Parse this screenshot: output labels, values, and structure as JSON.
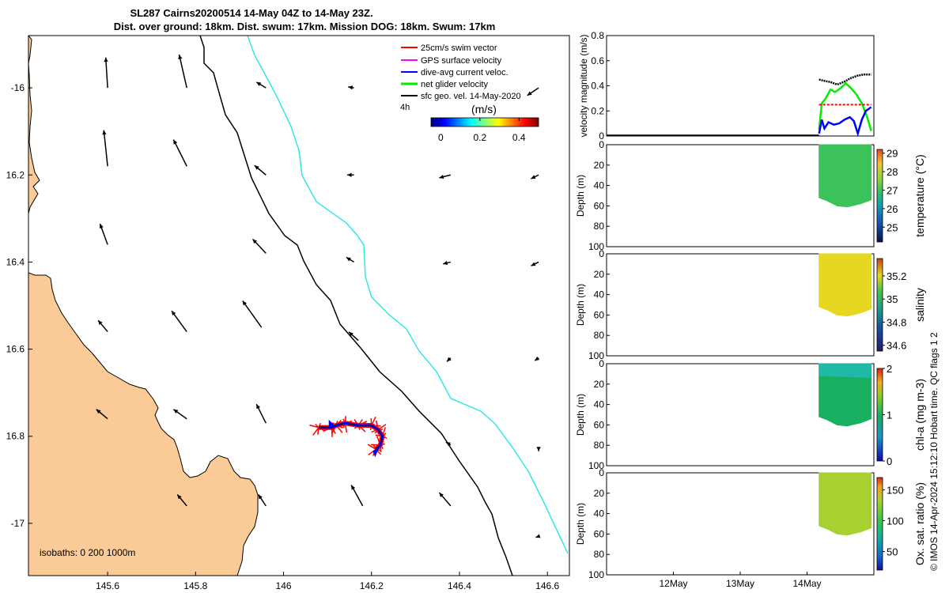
{
  "title_line1": "SL287 Cairns20200514 14-May 04Z to 14-May 23Z.",
  "title_line2": "Dist. over ground: 18km. Dist. swum: 17km. Mission DOG: 18km. Swum: 17km",
  "footer": "© IMOS 14-Apr-2024 15:12:10 Hobart time. QC flags 1  2",
  "colors": {
    "land": "#fbcb97",
    "isobath_200": "#000000",
    "isobath_1000": "#33e6e6",
    "swim_vector": "#ff0000",
    "gps_velocity": "#ff00ff",
    "dive_avg": "#0000ff",
    "net_velocity": "#00ee00",
    "geo_velocity": "#000000"
  },
  "chart_data": [
    {
      "type": "map",
      "x_ticks": [
        "145.6",
        "145.8",
        "146",
        "146.2",
        "146.4",
        "146.6"
      ],
      "y_ticks": [
        "-16",
        "16.2",
        "16.4",
        "16.6",
        "16.8",
        "-17"
      ],
      "xlim": [
        145.42,
        146.65
      ],
      "ylim": [
        -17.12,
        -15.88
      ],
      "legend": [
        {
          "label": "25cm/s swim vector",
          "color": "#ff0000"
        },
        {
          "label": "GPS surface velocity",
          "color": "#ff00ff"
        },
        {
          "label": "dive-avg current veloc.",
          "color": "#0000ff"
        },
        {
          "label": "net glider velocity",
          "color": "#00ee00"
        },
        {
          "label": "sfc geo. vel. 14-May-2020",
          "color": "#000000"
        }
      ],
      "legend_note": "4h",
      "colorbar": {
        "label": "(m/s)",
        "ticks": [
          "0",
          "0.2",
          "0.4"
        ],
        "range": [
          -0.05,
          0.5
        ]
      },
      "isobath_note": "isobaths: 0   200  1000m",
      "geo_vectors": [
        {
          "lon": 145.6,
          "lat": -16.0,
          "u": -0.02,
          "v": 0.32
        },
        {
          "lon": 145.78,
          "lat": -16.0,
          "u": -0.08,
          "v": 0.35
        },
        {
          "lon": 145.6,
          "lat": -16.18,
          "u": -0.04,
          "v": 0.38
        },
        {
          "lon": 145.78,
          "lat": -16.18,
          "u": -0.14,
          "v": 0.28
        },
        {
          "lon": 145.6,
          "lat": -16.36,
          "u": -0.08,
          "v": 0.22
        },
        {
          "lon": 145.6,
          "lat": -16.56,
          "u": -0.1,
          "v": 0.12
        },
        {
          "lon": 145.78,
          "lat": -16.56,
          "u": -0.16,
          "v": 0.22
        },
        {
          "lon": 145.6,
          "lat": -16.76,
          "u": -0.12,
          "v": 0.1
        },
        {
          "lon": 145.78,
          "lat": -16.76,
          "u": -0.14,
          "v": 0.1
        },
        {
          "lon": 145.78,
          "lat": -16.96,
          "u": -0.1,
          "v": 0.12
        },
        {
          "lon": 145.95,
          "lat": -16.55,
          "u": -0.2,
          "v": 0.28
        },
        {
          "lon": 145.96,
          "lat": -16.77,
          "u": -0.1,
          "v": 0.2
        },
        {
          "lon": 145.96,
          "lat": -16.96,
          "u": -0.08,
          "v": 0.12
        },
        {
          "lon": 145.96,
          "lat": -16.2,
          "u": -0.12,
          "v": 0.1
        },
        {
          "lon": 145.96,
          "lat": -16.38,
          "u": -0.14,
          "v": 0.15
        },
        {
          "lon": 145.96,
          "lat": -16.0,
          "u": -0.1,
          "v": 0.06
        },
        {
          "lon": 146.16,
          "lat": -16.0,
          "u": -0.06,
          "v": 0.01
        },
        {
          "lon": 146.16,
          "lat": -16.2,
          "u": -0.07,
          "v": 0.0
        },
        {
          "lon": 146.16,
          "lat": -16.4,
          "u": -0.08,
          "v": 0.05
        },
        {
          "lon": 146.17,
          "lat": -16.58,
          "u": -0.1,
          "v": 0.09
        },
        {
          "lon": 146.18,
          "lat": -16.96,
          "u": -0.12,
          "v": 0.22
        },
        {
          "lon": 146.38,
          "lat": -16.2,
          "u": -0.12,
          "v": -0.03
        },
        {
          "lon": 146.38,
          "lat": -16.4,
          "u": -0.08,
          "v": -0.02
        },
        {
          "lon": 146.38,
          "lat": -16.62,
          "u": -0.04,
          "v": -0.04
        },
        {
          "lon": 146.38,
          "lat": -16.82,
          "u": -0.05,
          "v": 0.03
        },
        {
          "lon": 146.38,
          "lat": -16.96,
          "u": -0.12,
          "v": 0.14
        },
        {
          "lon": 146.58,
          "lat": -16.0,
          "u": -0.12,
          "v": -0.08
        },
        {
          "lon": 146.58,
          "lat": -16.2,
          "u": -0.08,
          "v": -0.04
        },
        {
          "lon": 146.58,
          "lat": -16.4,
          "u": -0.08,
          "v": -0.04
        },
        {
          "lon": 146.58,
          "lat": -16.62,
          "u": -0.04,
          "v": -0.03
        },
        {
          "lon": 146.58,
          "lat": -16.83,
          "u": 0.0,
          "v": -0.02
        },
        {
          "lon": 146.58,
          "lat": -17.03,
          "u": -0.03,
          "v": -0.01
        }
      ],
      "glider_track": [
        [
          146.08,
          -16.78
        ],
        [
          146.11,
          -16.78
        ],
        [
          146.12,
          -16.775
        ],
        [
          146.14,
          -16.77
        ],
        [
          146.17,
          -16.775
        ],
        [
          146.2,
          -16.775
        ],
        [
          146.215,
          -16.785
        ],
        [
          146.225,
          -16.8
        ],
        [
          146.22,
          -16.82
        ],
        [
          146.21,
          -16.83
        ]
      ]
    },
    {
      "type": "line",
      "ylabel": "velocity magnitude (m/s)",
      "ylim": [
        0,
        0.8
      ],
      "y_ticks": [
        "0",
        "0.2",
        "0.4",
        "0.6",
        "0.8"
      ],
      "series": [
        {
          "name": "sfc geo. vel.",
          "color": "#000000",
          "x": [
            14.18,
            14.25,
            14.35,
            14.45,
            14.55,
            14.65,
            14.75,
            14.85,
            14.96
          ],
          "y": [
            0.45,
            0.44,
            0.43,
            0.41,
            0.43,
            0.46,
            0.48,
            0.49,
            0.49
          ]
        },
        {
          "name": "net glider velocity",
          "color": "#00ee00",
          "x": [
            14.18,
            14.22,
            14.28,
            14.35,
            14.42,
            14.5,
            14.58,
            14.66,
            14.74,
            14.82,
            14.9,
            14.96
          ],
          "y": [
            0.05,
            0.26,
            0.3,
            0.37,
            0.35,
            0.38,
            0.42,
            0.38,
            0.33,
            0.26,
            0.15,
            0.04
          ]
        },
        {
          "name": "dive-avg current veloc.",
          "color": "#0000ff",
          "x": [
            14.18,
            14.22,
            14.26,
            14.32,
            14.4,
            14.48,
            14.56,
            14.64,
            14.7,
            14.76,
            14.82,
            14.88,
            14.96
          ],
          "y": [
            0.02,
            0.13,
            0.06,
            0.11,
            0.09,
            0.1,
            0.13,
            0.15,
            0.12,
            0.02,
            0.13,
            0.2,
            0.23
          ]
        },
        {
          "name": "25cm/s swim vector",
          "color": "#ff0000",
          "x": [
            14.18,
            14.96
          ],
          "y": [
            0.25,
            0.25
          ]
        }
      ]
    },
    {
      "type": "heatmap",
      "ylabel": "Depth (m)",
      "clabel": "temperature (°C)",
      "ylim": [
        100,
        0
      ],
      "y_ticks": [
        "0",
        "20",
        "40",
        "60",
        "80",
        "100"
      ],
      "c_ticks": [
        "25",
        "26",
        "27",
        "28",
        "29"
      ],
      "crange": [
        24.2,
        29.2
      ],
      "value": 26.9
    },
    {
      "type": "heatmap",
      "ylabel": "Depth (m)",
      "clabel": "salinity",
      "ylim": [
        100,
        0
      ],
      "y_ticks": [
        "0",
        "20",
        "40",
        "60",
        "80",
        "100"
      ],
      "c_ticks": [
        "34.6",
        "34.8",
        "35",
        "35.2"
      ],
      "crange": [
        34.55,
        35.35
      ],
      "value": 35.12
    },
    {
      "type": "heatmap",
      "ylabel": "Depth (m)",
      "clabel": "chl-a (mg m-3)",
      "ylim": [
        100,
        0
      ],
      "y_ticks": [
        "0",
        "20",
        "40",
        "60",
        "80",
        "100"
      ],
      "c_ticks": [
        "0",
        "1",
        "2"
      ],
      "crange": [
        0,
        2
      ],
      "value": 0.85
    },
    {
      "type": "heatmap",
      "ylabel": "Depth (m)",
      "clabel": "Ox. sat. ratio (%)",
      "ylim": [
        100,
        0
      ],
      "y_ticks": [
        "0",
        "20",
        "40",
        "60",
        "80",
        "100"
      ],
      "c_ticks": [
        "50",
        "100",
        "150"
      ],
      "crange": [
        20,
        170
      ],
      "value": 118,
      "x_ticks": [
        "12May",
        "13May",
        "14May"
      ]
    }
  ]
}
